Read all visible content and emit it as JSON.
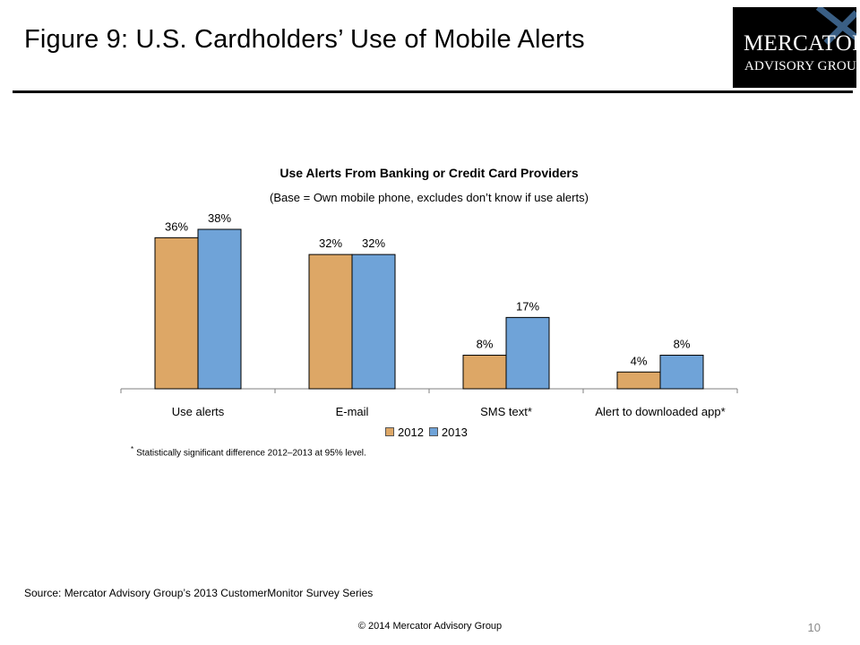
{
  "slide": {
    "title": "Figure 9: U.S. Cardholders’ Use of Mobile Alerts",
    "logo_line1": "MERCATOR",
    "logo_line2": "ADVISORY GROUP",
    "source": "Source: Mercator Advisory Group’s 2013 CustomerMonitor Survey Series",
    "copyright": "© 2014 Mercator Advisory Group",
    "page_number": "10",
    "footnote_marker": "*",
    "footnote": "Statistically significant difference 2012–2013 at 95% level."
  },
  "colors": {
    "series_2012": "#dda766",
    "series_2013": "#6fa3d8",
    "logo_accent": "#3a5f85"
  },
  "chart_data": {
    "type": "bar",
    "title": "Use Alerts From Banking or Credit Card Providers",
    "subtitle": "(Base = Own mobile phone, excludes don’t know if use alerts)",
    "xlabel": "",
    "ylabel": "",
    "categories": [
      "Use alerts",
      "E-mail",
      "SMS text*",
      "Alert to downloaded app*"
    ],
    "series": [
      {
        "name": "2012",
        "values": [
          36,
          32,
          8,
          4
        ],
        "labels": [
          "36%",
          "32%",
          "8%",
          "4%"
        ]
      },
      {
        "name": "2013",
        "values": [
          38,
          32,
          17,
          8
        ],
        "labels": [
          "38%",
          "32%",
          "17%",
          "8%"
        ]
      }
    ],
    "ylim": [
      0,
      40
    ],
    "grid": false,
    "legend_position": "bottom"
  }
}
